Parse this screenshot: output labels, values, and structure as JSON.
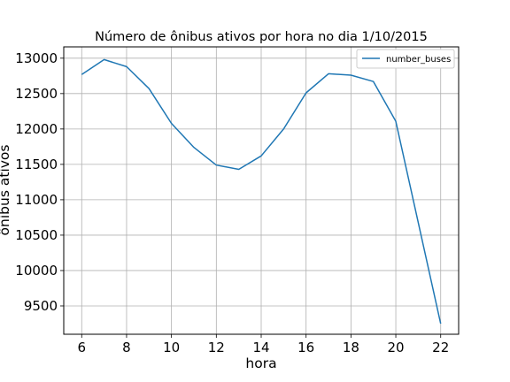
{
  "chart_data": {
    "type": "line",
    "title": "Número de ônibus ativos por hora no dia 1/10/2015",
    "xlabel": "hora",
    "ylabel": "ônibus ativos",
    "xlim": [
      5.2,
      22.8
    ],
    "ylim": [
      9100,
      13160
    ],
    "x_ticks": [
      6,
      8,
      10,
      12,
      14,
      16,
      18,
      20,
      22
    ],
    "y_ticks": [
      9500,
      10000,
      10500,
      11000,
      11500,
      12000,
      12500,
      13000
    ],
    "grid": true,
    "legend_position": "top-right",
    "series": [
      {
        "name": "number_buses",
        "color": "#1f77b4",
        "x": [
          6,
          7,
          8,
          9,
          10,
          11,
          12,
          13,
          14,
          15,
          16,
          17,
          18,
          19,
          20,
          22
        ],
        "y": [
          12770,
          12980,
          12880,
          12570,
          12080,
          11740,
          11490,
          11430,
          11620,
          12000,
          12510,
          12780,
          12760,
          12670,
          12110,
          9250
        ]
      }
    ]
  }
}
